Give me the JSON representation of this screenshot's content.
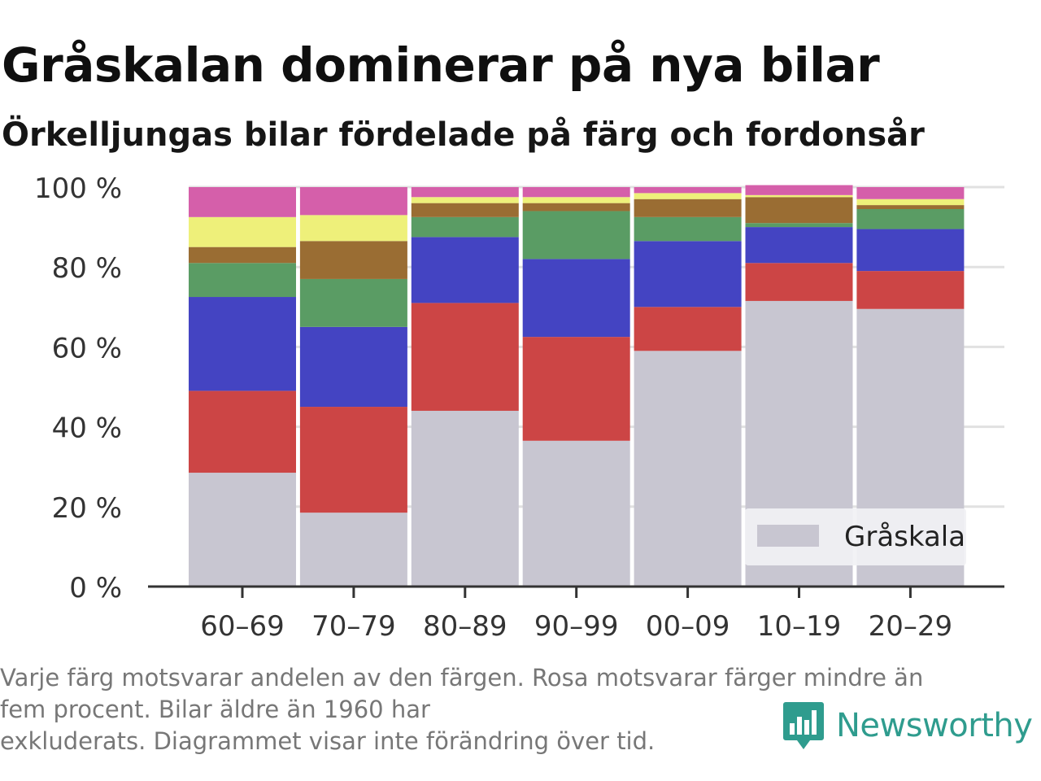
{
  "title": "Gråskalan dominerar på nya bilar",
  "subtitle": "Örkelljungas bilar fördelade på färg och fordonsår",
  "footnote": [
    "Varje färg motsvarar andelen av den färgen. Rosa motsvarar färger mindre än",
    "fem procent. Bilar äldre än 1960 har",
    "exkluderats. Diagrammet visar inte förändring över tid."
  ],
  "brand": {
    "name": "Newsworthy",
    "logo_icon": "newsworthy-chart-logo-icon",
    "color": "#2f9c8e"
  },
  "chart_data": {
    "type": "bar",
    "stacked": true,
    "categories": [
      "60–69",
      "70–79",
      "80–89",
      "90–99",
      "00–09",
      "10–19",
      "20–29"
    ],
    "y_ticks": [
      {
        "value": 0,
        "label": "0 %"
      },
      {
        "value": 20,
        "label": "20 %"
      },
      {
        "value": 40,
        "label": "40 %"
      },
      {
        "value": 60,
        "label": "60 %"
      },
      {
        "value": 80,
        "label": "80 %"
      },
      {
        "value": 100,
        "label": "100 %"
      }
    ],
    "ylim": [
      0,
      100
    ],
    "grid": true,
    "legend": {
      "position": "bottom-right",
      "entries": [
        "Gråskala"
      ]
    },
    "series": [
      {
        "name": "Gråskala",
        "color": "#c8c6d1",
        "values": [
          28.5,
          18.5,
          44,
          36.5,
          59,
          71.5,
          69.5
        ]
      },
      {
        "color": "#cc4545",
        "values": [
          20.5,
          26.5,
          27,
          26,
          11,
          9.5,
          9.5
        ]
      },
      {
        "color": "#4444c2",
        "values": [
          23.5,
          20,
          16.5,
          19.5,
          16.5,
          9,
          10.5
        ]
      },
      {
        "color": "#5a9c64",
        "values": [
          8.5,
          12,
          5,
          12,
          6,
          1,
          5
        ]
      },
      {
        "color": "#9a6d33",
        "values": [
          4,
          9.5,
          3.5,
          2,
          4.5,
          6.5,
          1
        ]
      },
      {
        "color": "#eef07a",
        "values": [
          7.5,
          6.5,
          1.5,
          1.5,
          1.5,
          0.5,
          1.5
        ]
      },
      {
        "color": "#d55faa",
        "values": [
          7.5,
          7,
          2.5,
          2.5,
          1.5,
          2.5,
          3
        ]
      }
    ]
  }
}
